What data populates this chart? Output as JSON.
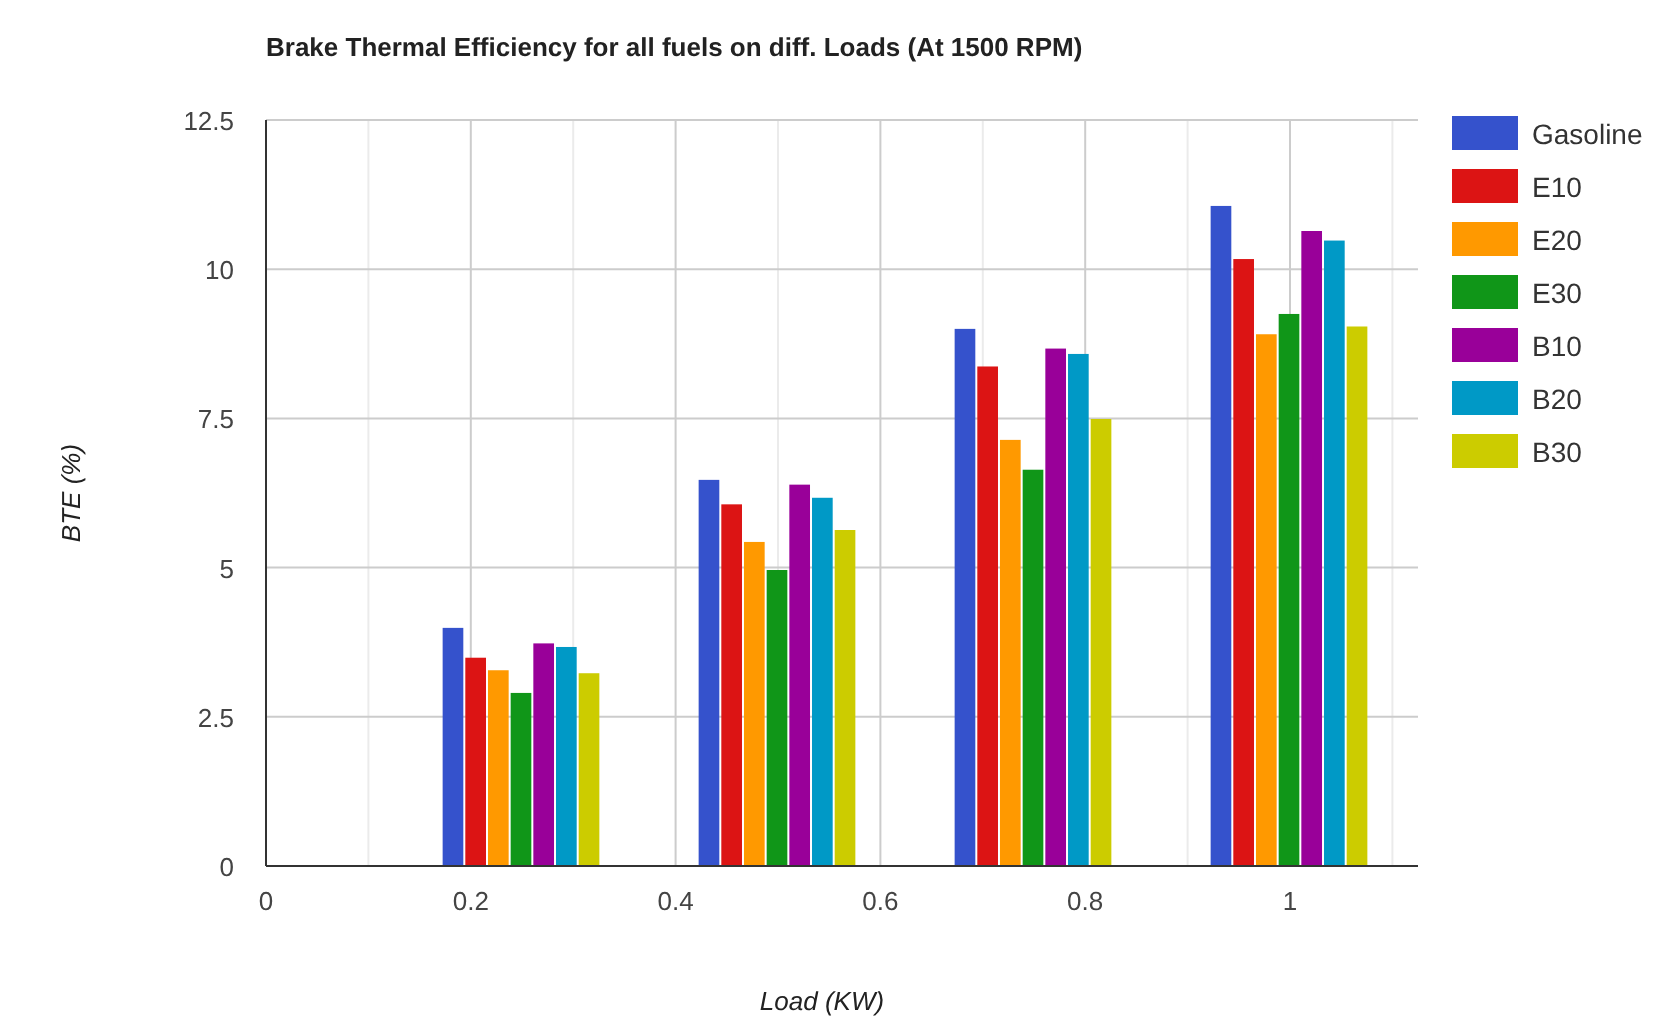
{
  "chart_data": {
    "type": "bar",
    "title": "Brake Thermal Efficiency for all fuels on diff. Loads (At 1500 RPM)",
    "xlabel": "Load (KW)",
    "ylabel": "BTE (%)",
    "x": [
      0.25,
      0.5,
      0.75,
      1
    ],
    "series": [
      {
        "name": "Gasoline",
        "color": "#3552cc",
        "values": [
          3.99,
          6.47,
          9.0,
          11.06
        ]
      },
      {
        "name": "E10",
        "color": "#dc1414",
        "values": [
          3.49,
          6.06,
          8.37,
          10.17
        ]
      },
      {
        "name": "E20",
        "color": "#ff9900",
        "values": [
          3.28,
          5.43,
          7.14,
          8.91
        ]
      },
      {
        "name": "E30",
        "color": "#109618",
        "values": [
          2.9,
          4.96,
          6.64,
          9.25
        ]
      },
      {
        "name": "B10",
        "color": "#990099",
        "values": [
          3.73,
          6.39,
          8.67,
          10.64
        ]
      },
      {
        "name": "B20",
        "color": "#0099c6",
        "values": [
          3.67,
          6.17,
          8.58,
          10.48
        ]
      },
      {
        "name": "B30",
        "color": "#cccc00",
        "values": [
          3.23,
          5.63,
          7.49,
          9.04
        ]
      }
    ],
    "xlim": [
      0,
      1.125
    ],
    "xticks": [
      0,
      {
        "value": 0.1,
        "label": null
      },
      {
        "value": 0.2,
        "label": "0.2"
      },
      {
        "value": 0.3,
        "label": null
      },
      {
        "value": 0.4,
        "label": "0.4"
      },
      {
        "value": 0.5,
        "label": null
      },
      {
        "value": 0.6,
        "label": "0.6"
      },
      {
        "value": 0.7,
        "label": null
      },
      {
        "value": 0.8,
        "label": "0.8"
      },
      {
        "value": 0.9,
        "label": null
      },
      1,
      {
        "value": 1.1,
        "label": null
      }
    ],
    "ylim": [
      0,
      12.5
    ],
    "yticks": [
      0,
      2.5,
      5,
      7.5,
      10,
      12.5
    ],
    "grid": true,
    "legend": "right"
  }
}
